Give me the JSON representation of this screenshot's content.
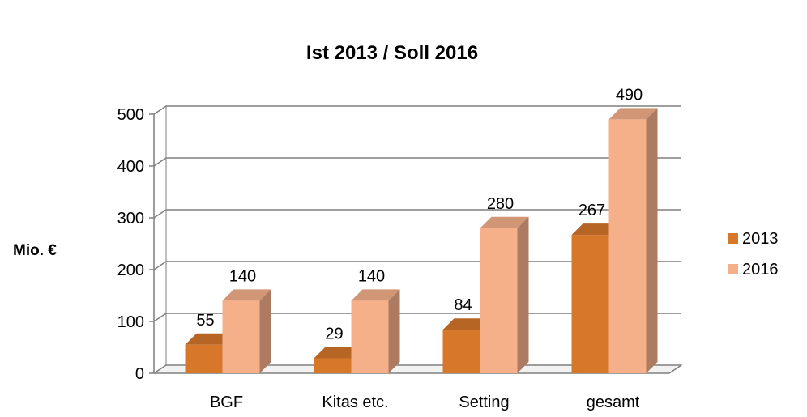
{
  "chart_data": {
    "type": "bar",
    "title": "Ist 2013 / Soll 2016",
    "ylabel": "Mio. €",
    "xlabel": "",
    "categories": [
      "BGF",
      "Kitas etc.",
      "Setting",
      "gesamt"
    ],
    "series": [
      {
        "name": "2013",
        "values": [
          55,
          29,
          84,
          267
        ],
        "color": "#d6772a"
      },
      {
        "name": "2016",
        "values": [
          140,
          140,
          280,
          490
        ],
        "color": "#f5b08a"
      }
    ],
    "ylim": [
      0,
      500
    ],
    "yticks": [
      0,
      100,
      200,
      300,
      400,
      500
    ],
    "grid": true,
    "legend": "right",
    "style": "3d-column"
  }
}
